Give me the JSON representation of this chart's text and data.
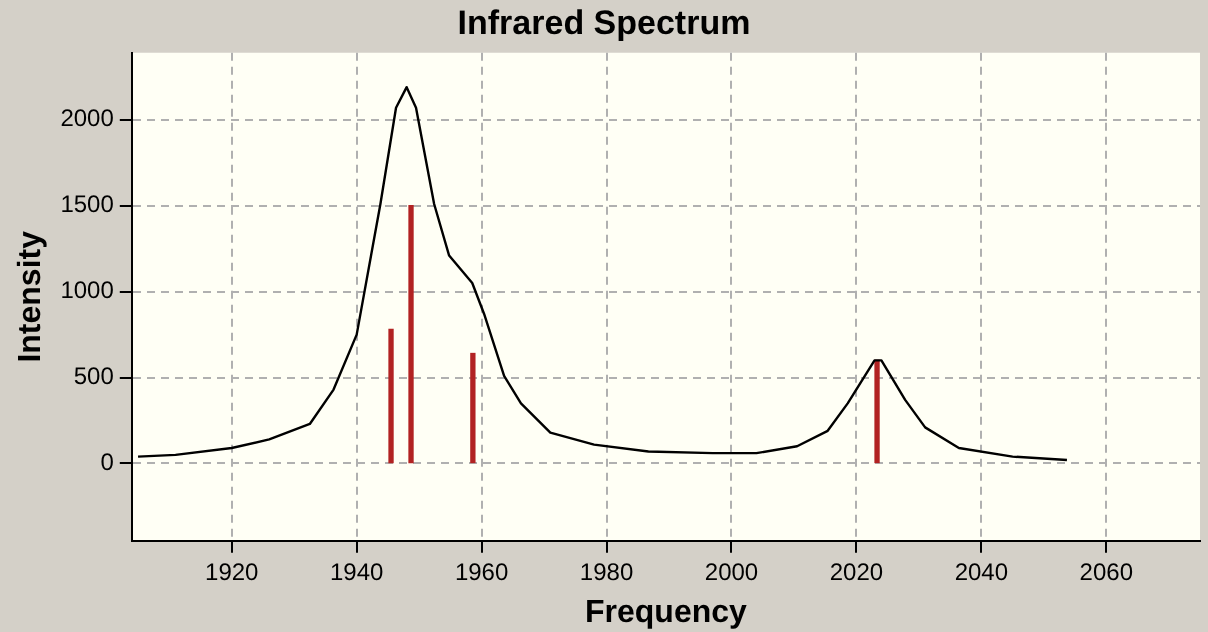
{
  "chart_data": {
    "type": "line",
    "title": "Infrared Spectrum",
    "xlabel": "Frequency",
    "ylabel": "Intensity",
    "xlim": [
      1904,
      2075
    ],
    "xticks": [
      1920,
      1940,
      1960,
      1980,
      2000,
      2020,
      2040,
      2060
    ],
    "ylim": [
      -450,
      2390
    ],
    "yticks": [
      0,
      500,
      1000,
      1500,
      2000
    ],
    "grid": true,
    "legend": false,
    "marker": "none",
    "line_style": "solid",
    "series": [
      {
        "color": "#000000",
        "x": [
          1905,
          1911,
          1920,
          1926,
          1932.5,
          1936.3,
          1940,
          1943.8,
          1946.3,
          1948,
          1949.5,
          1952.4,
          1954.8,
          1958.5,
          1960.4,
          1963.6,
          1966.3,
          1971,
          1978,
          1986.7,
          1997,
          2004,
          2010.5,
          2015.4,
          2018.6,
          2022.9,
          2024,
          2027.8,
          2031,
          2036.4,
          2045,
          2053.7
        ],
        "values": [
          40,
          50,
          90,
          140,
          230,
          430,
          750,
          1510,
          2070,
          2190,
          2070,
          1510,
          1210,
          1050,
          870,
          510,
          350,
          180,
          110,
          70,
          60,
          60,
          100,
          190,
          350,
          600,
          600,
          370,
          210,
          90,
          40,
          20
        ]
      },
      {
        "type": "bar",
        "color": "#b22222",
        "x": [
          1945.5,
          1948.7,
          1958.6,
          2023.3
        ],
        "values": [
          780,
          1500,
          640,
          600
        ]
      }
    ]
  }
}
